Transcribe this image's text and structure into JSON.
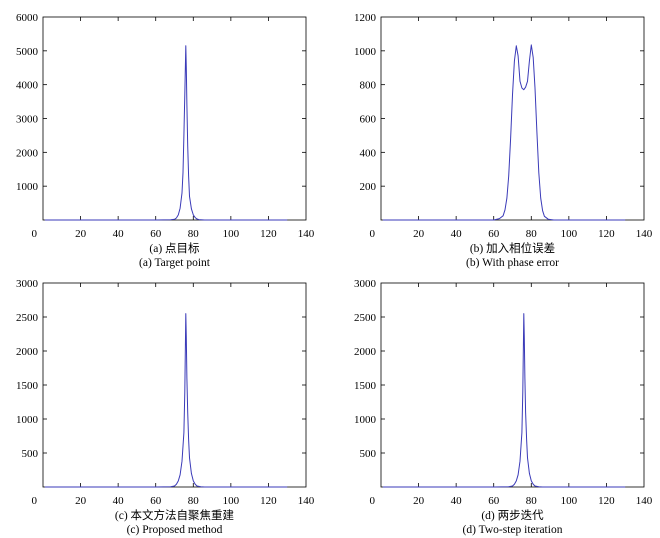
{
  "chart_data": [
    {
      "type": "line",
      "caption_cn": "(a) 点目标",
      "caption_en": "(a) Target point",
      "xlim": [
        0,
        140
      ],
      "ylim": [
        0,
        6000
      ],
      "xticks": [
        "0",
        "20",
        "40",
        "60",
        "80",
        "100",
        "120",
        "140"
      ],
      "yticks": [
        "1000",
        "2000",
        "3000",
        "4000",
        "5000",
        "6000"
      ],
      "series": [
        {
          "x": [
            1,
            30,
            60,
            68,
            70,
            71,
            72,
            73,
            74,
            74.5,
            75,
            75.5,
            76,
            76.3,
            76.6,
            77,
            77.5,
            78,
            79,
            80,
            81,
            82,
            83,
            86,
            100,
            130
          ],
          "y": [
            0,
            0,
            0,
            5,
            20,
            60,
            150,
            350,
            800,
            1400,
            2500,
            3700,
            5150,
            4500,
            3400,
            2200,
            1300,
            700,
            330,
            150,
            70,
            30,
            12,
            0,
            0,
            0
          ]
        }
      ]
    },
    {
      "type": "line",
      "caption_cn": "(b) 加入相位误差",
      "caption_en": "(b) With phase error",
      "xlim": [
        0,
        140
      ],
      "ylim": [
        0,
        1200
      ],
      "xticks": [
        "0",
        "20",
        "40",
        "60",
        "80",
        "100",
        "120",
        "140"
      ],
      "yticks": [
        "200",
        "400",
        "600",
        "800",
        "1000",
        "1200"
      ],
      "series": [
        {
          "x": [
            1,
            30,
            60,
            63,
            65,
            66,
            67,
            68,
            69,
            70,
            71,
            72,
            73,
            74,
            75,
            76,
            77,
            78,
            79,
            80,
            81,
            82,
            83,
            84,
            85,
            86,
            87,
            89,
            92,
            110,
            130
          ],
          "y": [
            0,
            0,
            0,
            8,
            25,
            60,
            130,
            260,
            480,
            740,
            940,
            1030,
            970,
            820,
            780,
            770,
            785,
            820,
            940,
            1035,
            960,
            780,
            520,
            280,
            130,
            55,
            22,
            5,
            0,
            0,
            0
          ]
        }
      ]
    },
    {
      "type": "line",
      "caption_cn": "(c) 本文方法自聚焦重建",
      "caption_en": "(c) Proposed method",
      "xlim": [
        0,
        140
      ],
      "ylim": [
        0,
        3000
      ],
      "xticks": [
        "0",
        "20",
        "40",
        "60",
        "80",
        "100",
        "120",
        "140"
      ],
      "yticks": [
        "500",
        "1000",
        "1500",
        "2000",
        "2500",
        "3000"
      ],
      "series": [
        {
          "x": [
            1,
            30,
            60,
            68,
            70,
            71,
            72,
            73,
            74,
            75,
            75.5,
            76,
            76.3,
            76.6,
            77,
            77.5,
            78,
            79,
            80,
            81,
            82,
            84,
            86,
            100,
            130
          ],
          "y": [
            0,
            0,
            0,
            5,
            15,
            40,
            90,
            180,
            380,
            800,
            1400,
            2550,
            2200,
            1600,
            1100,
            700,
            430,
            200,
            90,
            40,
            15,
            3,
            0,
            0,
            0
          ]
        }
      ]
    },
    {
      "type": "line",
      "caption_cn": "(d) 两步迭代",
      "caption_en": "(d) Two-step iteration",
      "xlim": [
        0,
        140
      ],
      "ylim": [
        0,
        3000
      ],
      "xticks": [
        "0",
        "20",
        "40",
        "60",
        "80",
        "100",
        "120",
        "140"
      ],
      "yticks": [
        "500",
        "1000",
        "1500",
        "2000",
        "2500",
        "3000"
      ],
      "series": [
        {
          "x": [
            1,
            30,
            60,
            68,
            70,
            71,
            72,
            73,
            74,
            75,
            75.5,
            76,
            76.3,
            76.6,
            77,
            77.5,
            78,
            79,
            80,
            81,
            82,
            84,
            86,
            100,
            130
          ],
          "y": [
            0,
            0,
            0,
            5,
            15,
            40,
            90,
            180,
            380,
            800,
            1400,
            2550,
            2200,
            1600,
            1100,
            700,
            430,
            200,
            90,
            40,
            15,
            3,
            0,
            0,
            0
          ]
        }
      ]
    }
  ]
}
